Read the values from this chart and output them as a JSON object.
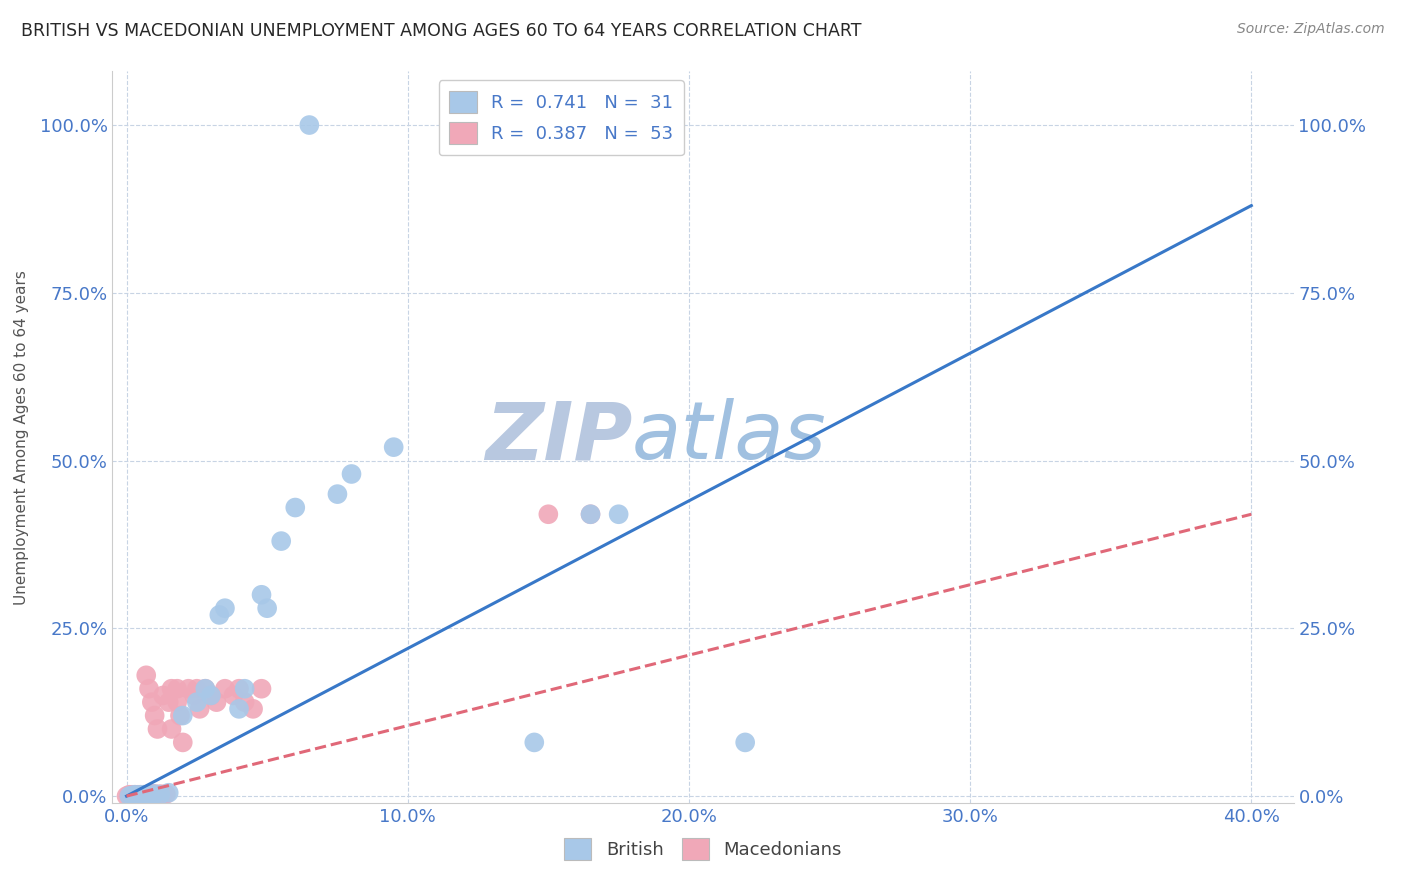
{
  "title": "BRITISH VS MACEDONIAN UNEMPLOYMENT AMONG AGES 60 TO 64 YEARS CORRELATION CHART",
  "source": "Source: ZipAtlas.com",
  "ylabel": "Unemployment Among Ages 60 to 64 years",
  "xlabel_ticks": [
    "0.0%",
    "10.0%",
    "20.0%",
    "30.0%",
    "40.0%"
  ],
  "xlabel_vals": [
    0.0,
    0.1,
    0.2,
    0.3,
    0.4
  ],
  "ylabel_ticks_left": [
    "0.0%",
    "25.0%",
    "50.0%",
    "75.0%",
    "100.0%"
  ],
  "ylabel_ticks_right": [
    "100.0%",
    "75.0%",
    "50.0%",
    "25.0%",
    "0.0%"
  ],
  "ylabel_vals": [
    0.0,
    0.25,
    0.5,
    0.75,
    1.0
  ],
  "xlim": [
    -0.005,
    0.415
  ],
  "ylim": [
    -0.01,
    1.08
  ],
  "british_R": 0.741,
  "british_N": 31,
  "macedonian_R": 0.387,
  "macedonian_N": 53,
  "british_color": "#a8c8e8",
  "macedonian_color": "#f0a8b8",
  "british_line_color": "#3878c8",
  "macedonian_line_color": "#e06878",
  "watermark_color": "#d0e0f4",
  "background_color": "#ffffff",
  "grid_color": "#c8d4e4",
  "title_color": "#282828",
  "axis_label_color": "#4878c8",
  "british_line": [
    0.0,
    0.0,
    0.4,
    0.88
  ],
  "macedonian_line": [
    0.0,
    0.0,
    0.4,
    0.42
  ],
  "british_scatter": [
    [
      0.001,
      0.0
    ],
    [
      0.002,
      0.001
    ],
    [
      0.003,
      0.002
    ],
    [
      0.004,
      0.001
    ],
    [
      0.005,
      0.002
    ],
    [
      0.006,
      0.002
    ],
    [
      0.007,
      0.001
    ],
    [
      0.008,
      0.001
    ],
    [
      0.01,
      0.003
    ],
    [
      0.012,
      0.002
    ],
    [
      0.015,
      0.005
    ],
    [
      0.02,
      0.12
    ],
    [
      0.025,
      0.14
    ],
    [
      0.028,
      0.16
    ],
    [
      0.03,
      0.15
    ],
    [
      0.033,
      0.27
    ],
    [
      0.035,
      0.28
    ],
    [
      0.04,
      0.13
    ],
    [
      0.042,
      0.16
    ],
    [
      0.048,
      0.3
    ],
    [
      0.05,
      0.28
    ],
    [
      0.055,
      0.38
    ],
    [
      0.06,
      0.43
    ],
    [
      0.065,
      1.0
    ],
    [
      0.075,
      0.45
    ],
    [
      0.08,
      0.48
    ],
    [
      0.095,
      0.52
    ],
    [
      0.145,
      0.08
    ],
    [
      0.165,
      0.42
    ],
    [
      0.175,
      0.42
    ],
    [
      0.22,
      0.08
    ]
  ],
  "macedonian_scatter": [
    [
      0.0,
      0.0
    ],
    [
      0.001,
      0.001
    ],
    [
      0.001,
      0.002
    ],
    [
      0.002,
      0.001
    ],
    [
      0.002,
      0.002
    ],
    [
      0.003,
      0.001
    ],
    [
      0.003,
      0.002
    ],
    [
      0.004,
      0.001
    ],
    [
      0.004,
      0.002
    ],
    [
      0.005,
      0.001
    ],
    [
      0.005,
      0.002
    ],
    [
      0.006,
      0.001
    ],
    [
      0.006,
      0.002
    ],
    [
      0.007,
      0.001
    ],
    [
      0.007,
      0.002
    ],
    [
      0.008,
      0.001
    ],
    [
      0.008,
      0.002
    ],
    [
      0.009,
      0.001
    ],
    [
      0.009,
      0.003
    ],
    [
      0.01,
      0.002
    ],
    [
      0.01,
      0.003
    ],
    [
      0.011,
      0.002
    ],
    [
      0.012,
      0.003
    ],
    [
      0.013,
      0.002
    ],
    [
      0.014,
      0.003
    ],
    [
      0.015,
      0.14
    ],
    [
      0.016,
      0.1
    ],
    [
      0.018,
      0.16
    ],
    [
      0.019,
      0.12
    ],
    [
      0.02,
      0.08
    ],
    [
      0.022,
      0.16
    ],
    [
      0.024,
      0.15
    ],
    [
      0.025,
      0.16
    ],
    [
      0.026,
      0.13
    ],
    [
      0.028,
      0.16
    ],
    [
      0.03,
      0.15
    ],
    [
      0.032,
      0.14
    ],
    [
      0.035,
      0.16
    ],
    [
      0.038,
      0.15
    ],
    [
      0.04,
      0.16
    ],
    [
      0.042,
      0.14
    ],
    [
      0.045,
      0.13
    ],
    [
      0.048,
      0.16
    ],
    [
      0.007,
      0.18
    ],
    [
      0.008,
      0.16
    ],
    [
      0.009,
      0.14
    ],
    [
      0.01,
      0.12
    ],
    [
      0.011,
      0.1
    ],
    [
      0.013,
      0.15
    ],
    [
      0.016,
      0.16
    ],
    [
      0.018,
      0.14
    ],
    [
      0.15,
      0.42
    ],
    [
      0.165,
      0.42
    ]
  ]
}
